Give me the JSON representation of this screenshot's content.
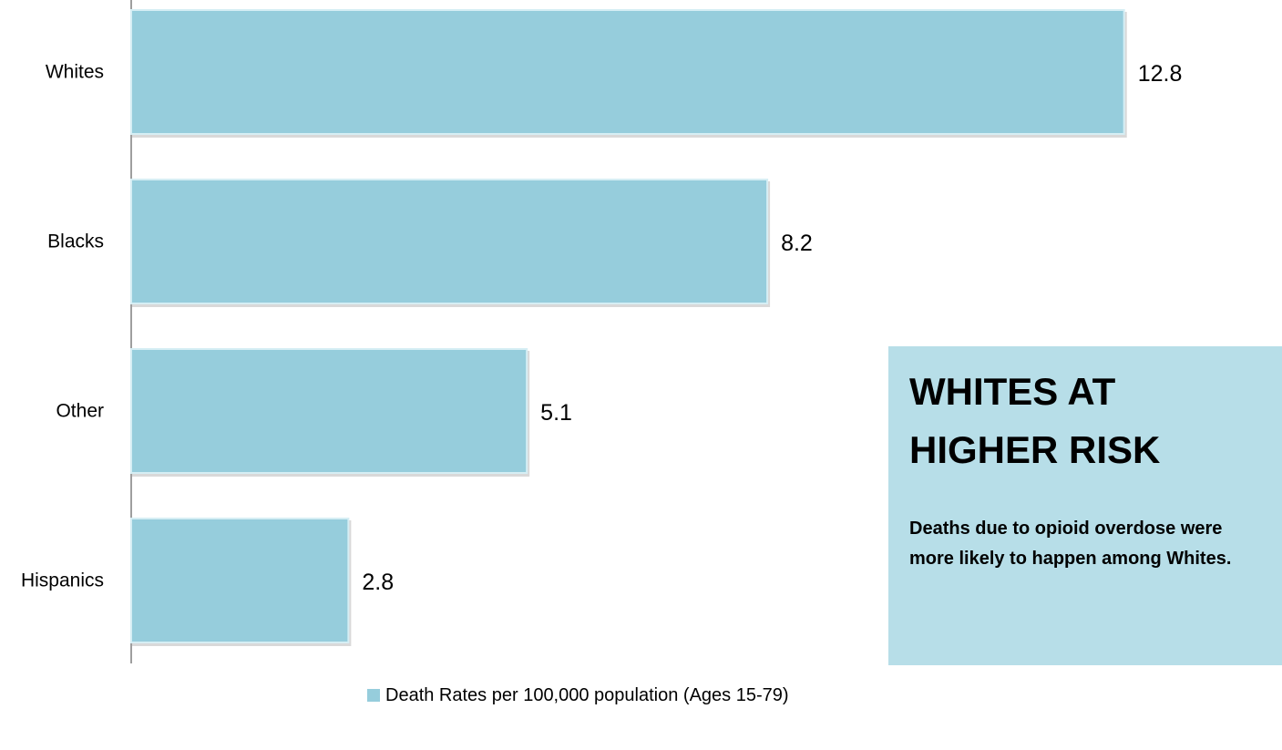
{
  "chart_data": {
    "type": "bar",
    "orientation": "horizontal",
    "categories": [
      "Whites",
      "Blacks",
      "Other",
      "Hispanics"
    ],
    "series": [
      {
        "name": "Death Rates per 100,000 population (Ages 15-79)",
        "values": [
          12.8,
          8.2,
          5.1,
          2.8
        ]
      }
    ],
    "value_labels": [
      "12.8",
      "8.2",
      "5.1",
      "2.8"
    ],
    "xlim": [
      0,
      13.25
    ],
    "grid": false,
    "legend_position": "bottom"
  },
  "callout": {
    "title": "WHITES AT HIGHER RISK",
    "body": "Deaths due to opioid overdose were more likely to happen among Whites."
  },
  "colors": {
    "bar_fill": "#96CDDC",
    "bar_edge": "#D6EEF4",
    "callout_bg": "#B7DEE8",
    "axis": "#7F7F7F"
  }
}
